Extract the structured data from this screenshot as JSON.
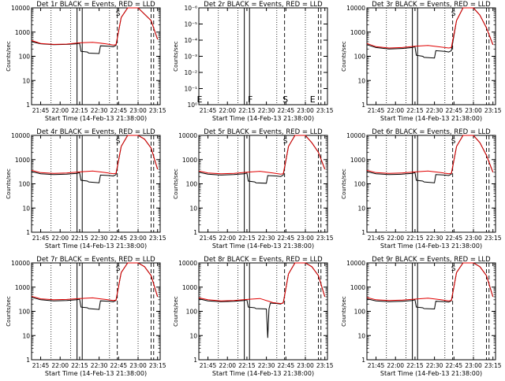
{
  "colors": {
    "events": "#000000",
    "lld": "#e00000",
    "axis": "#000000",
    "background": "#ffffff"
  },
  "chart_data": [
    {
      "type": "line",
      "title": "Det 1r BLACK = Events, RED = LLD",
      "xlabel": "Start Time (14-Feb-13 21:38:00)",
      "ylabel": "Counts/sec",
      "y_scale": "log",
      "ylim": [
        1,
        10000
      ],
      "xlim": [
        "21:38",
        "23:17"
      ],
      "x_ticks": [
        "21:45",
        "22:00",
        "22:15",
        "22:30",
        "22:45",
        "23:00",
        "23:15"
      ],
      "y_ticks": [
        "1",
        "10",
        "100",
        "1000",
        "10000"
      ],
      "markers": [
        {
          "time": "22:44",
          "label": "S"
        }
      ],
      "series": [
        {
          "name": "BLACK = Events",
          "x": [
            "21:38",
            "21:45",
            "21:55",
            "22:05",
            "22:13",
            "22:15",
            "22:16",
            "22:21",
            "22:22",
            "22:30",
            "22:31",
            "22:38",
            "22:41",
            "22:43",
            "22:47",
            "22:52",
            "23:00",
            "23:10",
            "23:15"
          ],
          "y": [
            400,
            330,
            300,
            310,
            330,
            350,
            160,
            150,
            135,
            130,
            270,
            260,
            250,
            280,
            4000,
            10000,
            10000,
            3000,
            500
          ]
        },
        {
          "name": "RED = LLD",
          "x": [
            "21:38",
            "21:45",
            "21:55",
            "22:05",
            "22:15",
            "22:25",
            "22:35",
            "22:41",
            "22:43",
            "22:47",
            "22:52",
            "23:00",
            "23:10",
            "23:15"
          ],
          "y": [
            450,
            340,
            310,
            320,
            360,
            380,
            330,
            290,
            300,
            4000,
            10000,
            10000,
            3000,
            500
          ]
        }
      ]
    },
    {
      "type": "line",
      "title": "Det 2r BLACK = Events, RED = LLD",
      "xlabel": "Start Time (14-Feb-13 21:38:00)",
      "ylabel": "Counts/sec",
      "y_scale": "log",
      "ylim": [
        1,
        1e-06
      ],
      "xlim": [
        "21:38",
        "23:17"
      ],
      "x_ticks": [
        "21:45",
        "22:00",
        "22:15",
        "22:30",
        "22:45",
        "23:00",
        "23:15"
      ],
      "y_ticks": [
        "10⁰",
        "10⁻¹",
        "10⁻²",
        "10⁻³",
        "10⁻⁴",
        "10⁻⁵",
        "10⁻⁶"
      ],
      "markers": [
        {
          "time": "21:38",
          "label": "E"
        },
        {
          "time": "22:17",
          "label": "F"
        },
        {
          "time": "22:44",
          "label": "S"
        },
        {
          "time": "23:05",
          "label": "E"
        }
      ],
      "series": []
    },
    {
      "type": "line",
      "title": "Det 3r BLACK = Events, RED = LLD",
      "xlabel": "Start Time (14-Feb-13 21:38:00)",
      "ylabel": "Counts/sec",
      "y_scale": "log",
      "ylim": [
        1,
        10000
      ],
      "xlim": [
        "21:38",
        "23:17"
      ],
      "x_ticks": [
        "21:45",
        "22:00",
        "22:15",
        "22:30",
        "22:45",
        "23:00",
        "23:15"
      ],
      "y_ticks": [
        "1",
        "10",
        "100",
        "1000",
        "10000"
      ],
      "markers": [
        {
          "time": "22:44",
          "label": "S"
        }
      ],
      "series": [
        {
          "name": "BLACK = Events",
          "x": [
            "21:38",
            "21:45",
            "21:55",
            "22:05",
            "22:13",
            "22:15",
            "22:16",
            "22:21",
            "22:22",
            "22:30",
            "22:31",
            "22:38",
            "22:41",
            "22:43",
            "22:47",
            "22:52",
            "23:00",
            "23:05",
            "23:10",
            "23:15"
          ],
          "y": [
            300,
            230,
            200,
            210,
            230,
            250,
            110,
            100,
            90,
            85,
            170,
            160,
            150,
            170,
            3000,
            10000,
            10000,
            5000,
            1500,
            300
          ]
        },
        {
          "name": "RED = LLD",
          "x": [
            "21:38",
            "21:45",
            "21:55",
            "22:05",
            "22:15",
            "22:25",
            "22:35",
            "22:41",
            "22:43",
            "22:47",
            "22:52",
            "23:00",
            "23:05",
            "23:10",
            "23:15"
          ],
          "y": [
            340,
            250,
            220,
            230,
            260,
            280,
            240,
            220,
            230,
            3000,
            10000,
            10000,
            5000,
            1500,
            300
          ]
        }
      ]
    },
    {
      "type": "line",
      "title": "Det 4r BLACK = Events, RED = LLD",
      "xlabel": "Start Time (14-Feb-13 21:38:00)",
      "ylabel": "Counts/sec",
      "y_scale": "log",
      "ylim": [
        1,
        10000
      ],
      "xlim": [
        "21:38",
        "23:17"
      ],
      "x_ticks": [
        "21:45",
        "22:00",
        "22:15",
        "22:30",
        "22:45",
        "23:00",
        "23:15"
      ],
      "y_ticks": [
        "1",
        "10",
        "100",
        "1000",
        "10000"
      ],
      "markers": [
        {
          "time": "22:44",
          "label": "S"
        }
      ],
      "series": [
        {
          "name": "BLACK = Events",
          "x": [
            "21:38",
            "21:45",
            "21:55",
            "22:05",
            "22:13",
            "22:15",
            "22:16",
            "22:21",
            "22:22",
            "22:30",
            "22:31",
            "22:38",
            "22:41",
            "22:43",
            "22:47",
            "22:52",
            "23:00",
            "23:05",
            "23:10",
            "23:15"
          ],
          "y": [
            320,
            260,
            240,
            250,
            270,
            290,
            140,
            130,
            120,
            110,
            230,
            220,
            210,
            240,
            3500,
            10000,
            10000,
            7000,
            3000,
            400
          ]
        },
        {
          "name": "RED = LLD",
          "x": [
            "21:38",
            "21:45",
            "21:55",
            "22:05",
            "22:15",
            "22:25",
            "22:35",
            "22:41",
            "22:43",
            "22:47",
            "22:52",
            "23:00",
            "23:05",
            "23:10",
            "23:15"
          ],
          "y": [
            360,
            290,
            270,
            280,
            310,
            340,
            290,
            260,
            270,
            3500,
            10000,
            10000,
            7000,
            3000,
            400
          ]
        }
      ]
    },
    {
      "type": "line",
      "title": "Det 5r BLACK = Events, RED = LLD",
      "xlabel": "Start Time (14-Feb-13 21:38:00)",
      "ylabel": "Counts/sec",
      "y_scale": "log",
      "ylim": [
        1,
        10000
      ],
      "xlim": [
        "21:38",
        "23:17"
      ],
      "x_ticks": [
        "21:45",
        "22:00",
        "22:15",
        "22:30",
        "22:45",
        "23:00",
        "23:15"
      ],
      "y_ticks": [
        "1",
        "10",
        "100",
        "1000",
        "10000"
      ],
      "markers": [
        {
          "time": "22:44",
          "label": "S"
        }
      ],
      "series": [
        {
          "name": "BLACK = Events",
          "x": [
            "21:38",
            "21:45",
            "21:55",
            "22:05",
            "22:13",
            "22:15",
            "22:16",
            "22:21",
            "22:22",
            "22:30",
            "22:31",
            "22:38",
            "22:41",
            "22:43",
            "22:47",
            "22:52",
            "23:00",
            "23:05",
            "23:10",
            "23:15"
          ],
          "y": [
            300,
            250,
            230,
            240,
            260,
            280,
            130,
            120,
            110,
            105,
            220,
            210,
            200,
            230,
            3500,
            10000,
            10000,
            5000,
            2000,
            400
          ]
        },
        {
          "name": "RED = LLD",
          "x": [
            "21:38",
            "21:45",
            "21:55",
            "22:05",
            "22:15",
            "22:25",
            "22:35",
            "22:41",
            "22:43",
            "22:47",
            "22:52",
            "23:00",
            "23:05",
            "23:10",
            "23:15"
          ],
          "y": [
            340,
            280,
            260,
            270,
            300,
            330,
            280,
            250,
            260,
            3500,
            10000,
            10000,
            5000,
            2000,
            400
          ]
        }
      ]
    },
    {
      "type": "line",
      "title": "Det 6r BLACK = Events, RED = LLD",
      "xlabel": "Start Time (14-Feb-13 21:38:00)",
      "ylabel": "Counts/sec",
      "y_scale": "log",
      "ylim": [
        1,
        10000
      ],
      "xlim": [
        "21:38",
        "23:17"
      ],
      "x_ticks": [
        "21:45",
        "22:00",
        "22:15",
        "22:30",
        "22:45",
        "23:00",
        "23:15"
      ],
      "y_ticks": [
        "1",
        "10",
        "100",
        "1000",
        "10000"
      ],
      "markers": [
        {
          "time": "22:44",
          "label": "S"
        }
      ],
      "series": [
        {
          "name": "BLACK = Events",
          "x": [
            "21:38",
            "21:45",
            "21:55",
            "22:05",
            "22:13",
            "22:15",
            "22:16",
            "22:21",
            "22:22",
            "22:30",
            "22:31",
            "22:38",
            "22:41",
            "22:43",
            "22:47",
            "22:52",
            "23:00",
            "23:05",
            "23:10",
            "23:15"
          ],
          "y": [
            320,
            260,
            240,
            250,
            270,
            290,
            140,
            130,
            120,
            110,
            240,
            230,
            220,
            250,
            3500,
            10000,
            10000,
            5000,
            1500,
            300
          ]
        },
        {
          "name": "RED = LLD",
          "x": [
            "21:38",
            "21:45",
            "21:55",
            "22:05",
            "22:15",
            "22:25",
            "22:35",
            "22:41",
            "22:43",
            "22:47",
            "22:52",
            "23:00",
            "23:05",
            "23:10",
            "23:15"
          ],
          "y": [
            360,
            290,
            270,
            280,
            310,
            340,
            290,
            260,
            270,
            3500,
            10000,
            10000,
            5000,
            1500,
            300
          ]
        }
      ]
    },
    {
      "type": "line",
      "title": "Det 7r BLACK = Events, RED = LLD",
      "xlabel": "Start Time (14-Feb-13 21:38:00)",
      "ylabel": "Counts/sec",
      "y_scale": "log",
      "ylim": [
        1,
        10000
      ],
      "xlim": [
        "21:38",
        "23:17"
      ],
      "x_ticks": [
        "21:45",
        "22:00",
        "22:15",
        "22:30",
        "22:45",
        "23:00",
        "23:15"
      ],
      "y_ticks": [
        "1",
        "10",
        "100",
        "1000",
        "10000"
      ],
      "markers": [
        {
          "time": "22:44",
          "label": "S"
        }
      ],
      "series": [
        {
          "name": "BLACK = Events",
          "x": [
            "21:38",
            "21:45",
            "21:55",
            "22:05",
            "22:13",
            "22:15",
            "22:16",
            "22:21",
            "22:22",
            "22:30",
            "22:31",
            "22:38",
            "22:41",
            "22:43",
            "22:47",
            "22:52",
            "23:00",
            "23:05",
            "23:10",
            "23:15"
          ],
          "y": [
            380,
            300,
            270,
            280,
            300,
            320,
            150,
            140,
            130,
            120,
            270,
            260,
            250,
            280,
            4000,
            10000,
            10000,
            7000,
            3000,
            400
          ]
        },
        {
          "name": "RED = LLD",
          "x": [
            "21:38",
            "21:45",
            "21:55",
            "22:05",
            "22:15",
            "22:25",
            "22:35",
            "22:41",
            "22:43",
            "22:47",
            "22:52",
            "23:00",
            "23:05",
            "23:10",
            "23:15"
          ],
          "y": [
            420,
            330,
            300,
            310,
            340,
            360,
            310,
            280,
            290,
            4000,
            10000,
            10000,
            7000,
            3000,
            400
          ]
        }
      ]
    },
    {
      "type": "line",
      "title": "Det 8r BLACK = Events, RED = LLD",
      "xlabel": "Start Time (14-Feb-13 21:38:00)",
      "ylabel": "Counts/sec",
      "y_scale": "log",
      "ylim": [
        1,
        10000
      ],
      "xlim": [
        "21:38",
        "23:17"
      ],
      "x_ticks": [
        "21:45",
        "22:00",
        "22:15",
        "22:30",
        "22:45",
        "23:00",
        "23:15"
      ],
      "y_ticks": [
        "1",
        "10",
        "100",
        "1000",
        "10000"
      ],
      "markers": [],
      "series": [
        {
          "name": "BLACK = Events",
          "x": [
            "21:38",
            "21:45",
            "21:55",
            "22:05",
            "22:13",
            "22:15",
            "22:16",
            "22:21",
            "22:22",
            "22:30",
            "22:31",
            "22:32",
            "22:33",
            "22:38",
            "22:41",
            "22:43",
            "22:47",
            "22:52",
            "23:00",
            "23:05",
            "23:10",
            "23:15"
          ],
          "y": [
            330,
            270,
            250,
            260,
            280,
            300,
            150,
            140,
            130,
            125,
            8,
            125,
            220,
            210,
            200,
            230,
            3500,
            10000,
            10000,
            7000,
            3000,
            400
          ]
        },
        {
          "name": "RED = LLD",
          "x": [
            "21:38",
            "21:45",
            "21:55",
            "22:05",
            "22:15",
            "22:25",
            "22:35",
            "22:41",
            "22:43",
            "22:47",
            "22:52",
            "23:00",
            "23:05",
            "23:10",
            "23:15"
          ],
          "y": [
            360,
            300,
            270,
            280,
            310,
            340,
            230,
            210,
            220,
            3500,
            10000,
            10000,
            7000,
            3000,
            400
          ]
        }
      ]
    },
    {
      "type": "line",
      "title": "Det 9r BLACK = Events, RED = LLD",
      "xlabel": "Start Time (14-Feb-13 21:38:00)",
      "ylabel": "Counts/sec",
      "y_scale": "log",
      "ylim": [
        1,
        10000
      ],
      "xlim": [
        "21:38",
        "23:17"
      ],
      "x_ticks": [
        "21:45",
        "22:00",
        "22:15",
        "22:30",
        "22:45",
        "23:00",
        "23:15"
      ],
      "y_ticks": [
        "1",
        "10",
        "100",
        "1000",
        "10000"
      ],
      "markers": [
        {
          "time": "22:44",
          "label": "S"
        }
      ],
      "series": [
        {
          "name": "BLACK = Events",
          "x": [
            "21:38",
            "21:45",
            "21:55",
            "22:05",
            "22:13",
            "22:15",
            "22:16",
            "22:21",
            "22:22",
            "22:30",
            "22:31",
            "22:38",
            "22:41",
            "22:43",
            "22:47",
            "22:52",
            "23:00",
            "23:05",
            "23:10",
            "23:15"
          ],
          "y": [
            330,
            270,
            250,
            260,
            280,
            300,
            150,
            140,
            130,
            125,
            260,
            250,
            240,
            270,
            4000,
            10000,
            10000,
            7000,
            3000,
            400
          ]
        },
        {
          "name": "RED = LLD",
          "x": [
            "21:38",
            "21:45",
            "21:55",
            "22:05",
            "22:15",
            "22:25",
            "22:35",
            "22:41",
            "22:43",
            "22:47",
            "22:52",
            "23:00",
            "23:05",
            "23:10",
            "23:15"
          ],
          "y": [
            370,
            300,
            280,
            290,
            320,
            350,
            300,
            270,
            280,
            4000,
            10000,
            10000,
            7000,
            3000,
            400
          ]
        }
      ]
    }
  ]
}
